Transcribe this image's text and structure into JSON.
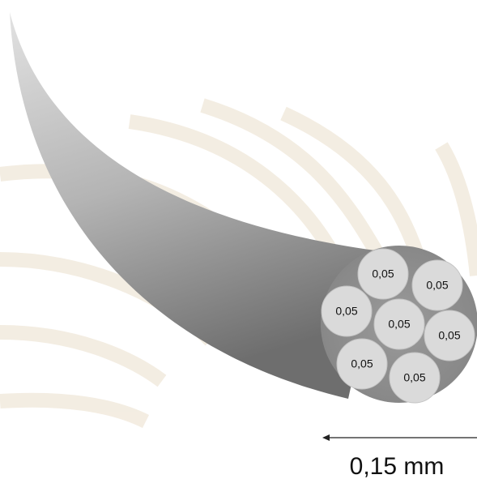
{
  "circles": [
    {
      "label": "0,05"
    },
    {
      "label": "0,05"
    },
    {
      "label": "0,05"
    },
    {
      "label": "0,05"
    },
    {
      "label": "0,05"
    },
    {
      "label": "0,05"
    },
    {
      "label": "0,05"
    }
  ],
  "dimension": {
    "label": "0,15 mm"
  }
}
